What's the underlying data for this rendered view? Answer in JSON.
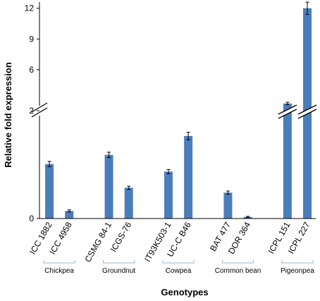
{
  "chart_data": {
    "type": "bar",
    "xlabel": "Genotypes",
    "ylabel": "Relative fold expression",
    "y_axis": {
      "broken": true,
      "lower_segment": {
        "range": [
          0,
          2
        ],
        "ticks": [
          0,
          2
        ]
      },
      "upper_segment": {
        "range": [
          2,
          12.6
        ],
        "ticks": [
          2,
          6,
          9,
          12
        ]
      },
      "tick_labels": [
        "0",
        "2",
        "6",
        "9",
        "12"
      ]
    },
    "categories": [
      "ICC 1882",
      "ICC 4958",
      "CSMG 84-1",
      "ICGS-76",
      "IT93K503-1",
      "UC-C B46",
      "BAT 477",
      "DOR 364",
      "ICPL 151",
      "ICPL 227"
    ],
    "values": [
      1.01,
      0.14,
      1.18,
      0.57,
      0.87,
      1.53,
      0.48,
      0.03,
      2.7,
      12.0
    ],
    "errors": [
      0.05,
      0.02,
      0.05,
      0.03,
      0.04,
      0.07,
      0.03,
      0.01,
      0.12,
      0.6
    ],
    "groups": [
      {
        "label": "Chickpea",
        "categories": [
          "ICC 1882",
          "ICC 4958"
        ]
      },
      {
        "label": "Groundnut",
        "categories": [
          "CSMG 84-1",
          "ICGS-76"
        ]
      },
      {
        "label": "Cowpea",
        "categories": [
          "IT93K503-1",
          "UC-C B46"
        ]
      },
      {
        "label": "Common bean",
        "categories": [
          "BAT 477",
          "DOR 364"
        ]
      },
      {
        "label": "Pigeonpea",
        "categories": [
          "ICPL 151",
          "ICPL 227"
        ]
      }
    ],
    "colors": {
      "bar": "#4a7ebb",
      "error": "#000000",
      "axis": "#000000"
    },
    "grid": false,
    "legend": "none"
  }
}
